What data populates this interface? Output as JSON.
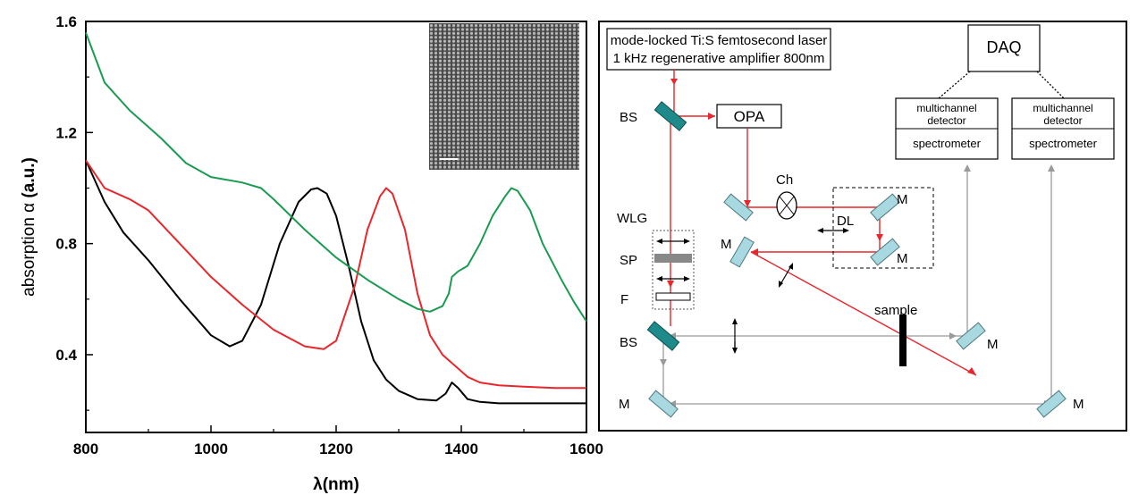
{
  "chart_data": {
    "type": "line",
    "xlabel": "λ(nm)",
    "ylabel_prefix": "absorption ",
    "ylabel_symbol": "α",
    "ylabel_unit": " (a.u.)",
    "xlim": [
      800,
      1600
    ],
    "ylim": [
      0.12,
      1.6
    ],
    "x_ticks": [
      800,
      1000,
      1200,
      1400,
      1600
    ],
    "y_ticks": [
      0.4,
      0.8,
      1.2,
      1.6
    ],
    "x_tick_labels": [
      "800",
      "1000",
      "1200",
      "1400",
      "1600"
    ],
    "y_tick_labels": [
      "0.4",
      "0.8",
      "1.2",
      "1.6"
    ],
    "grid": false,
    "inset": "electron micrograph of close-packed nanocrystal array with scale bar",
    "series": [
      {
        "color": "#000000",
        "x": [
          800,
          830,
          860,
          900,
          950,
          1000,
          1030,
          1050,
          1080,
          1110,
          1140,
          1160,
          1170,
          1185,
          1200,
          1220,
          1240,
          1260,
          1280,
          1300,
          1330,
          1360,
          1375,
          1385,
          1395,
          1410,
          1430,
          1460,
          1500,
          1550,
          1600
        ],
        "y": [
          1.1,
          0.95,
          0.84,
          0.74,
          0.6,
          0.47,
          0.43,
          0.45,
          0.58,
          0.8,
          0.95,
          0.995,
          1.0,
          0.98,
          0.9,
          0.72,
          0.52,
          0.38,
          0.31,
          0.27,
          0.24,
          0.235,
          0.26,
          0.3,
          0.28,
          0.24,
          0.23,
          0.225,
          0.225,
          0.225,
          0.225
        ]
      },
      {
        "color": "#e8262c",
        "x": [
          800,
          830,
          870,
          900,
          950,
          1000,
          1050,
          1100,
          1150,
          1180,
          1200,
          1230,
          1250,
          1270,
          1280,
          1290,
          1310,
          1330,
          1350,
          1370,
          1380,
          1390,
          1410,
          1430,
          1460,
          1500,
          1550,
          1600
        ],
        "y": [
          1.1,
          1.0,
          0.96,
          0.92,
          0.8,
          0.68,
          0.58,
          0.49,
          0.43,
          0.42,
          0.45,
          0.65,
          0.85,
          0.97,
          1.0,
          0.98,
          0.85,
          0.62,
          0.47,
          0.4,
          0.38,
          0.36,
          0.32,
          0.3,
          0.29,
          0.285,
          0.28,
          0.28
        ]
      },
      {
        "color": "#1a9b50",
        "x": [
          800,
          830,
          870,
          920,
          960,
          1000,
          1050,
          1080,
          1100,
          1150,
          1200,
          1250,
          1300,
          1330,
          1350,
          1370,
          1380,
          1385,
          1395,
          1410,
          1430,
          1450,
          1470,
          1480,
          1490,
          1510,
          1530,
          1560,
          1580,
          1600
        ],
        "y": [
          1.56,
          1.38,
          1.28,
          1.18,
          1.09,
          1.04,
          1.02,
          1.0,
          0.96,
          0.85,
          0.75,
          0.67,
          0.6,
          0.565,
          0.555,
          0.575,
          0.62,
          0.68,
          0.7,
          0.72,
          0.8,
          0.9,
          0.97,
          1.0,
          0.99,
          0.92,
          0.8,
          0.67,
          0.59,
          0.52
        ]
      }
    ]
  },
  "diagram": {
    "laser_line1": "mode-locked Ti:S femtosecond laser",
    "laser_line2": "1 kHz regenerative amplifier 800nm",
    "daq": "DAQ",
    "opa": "OPA",
    "bs_top": "BS",
    "bs_bottom": "BS",
    "ch": "Ch",
    "dl": "DL",
    "wlg": "WLG",
    "sp": "SP",
    "f": "F",
    "sample": "sample",
    "m_dl_top": "M",
    "m_dl_bottom": "M",
    "m_left": "M",
    "m_sample": "M",
    "m_bottom_left": "M",
    "m_bottom_right": "M",
    "det1_line1": "multichannel",
    "det1_line2": "detector",
    "det1_spec": "spectrometer",
    "det2_line1": "multichannel",
    "det2_line2": "detector",
    "det2_spec": "spectrometer"
  },
  "colors": {
    "beam_red": "#e8262c",
    "beam_gray": "#9a9a9a",
    "beamsplitter": "#1f8a8a",
    "mirror": "#a8d8e0"
  }
}
